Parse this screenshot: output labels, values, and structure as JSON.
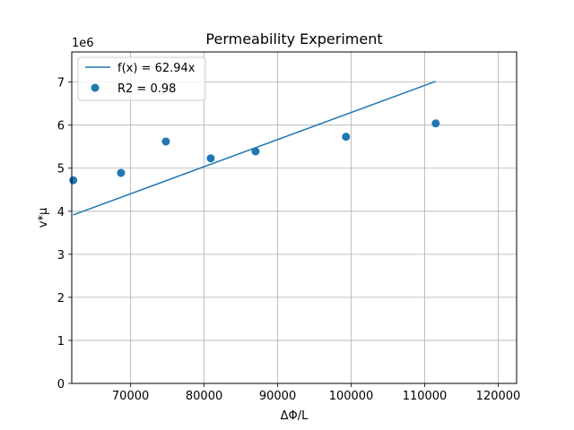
{
  "chart_data": {
    "type": "scatter",
    "title": "Permeability Experiment",
    "xlabel": "ΔΦ/L",
    "ylabel": "v*μ",
    "y_offset_label": "1e6",
    "xlim": [
      62000,
      122500
    ],
    "ylim": [
      0,
      7700000
    ],
    "xticks": [
      70000,
      80000,
      90000,
      100000,
      110000,
      120000
    ],
    "yticks": [
      0,
      1000000,
      2000000,
      3000000,
      4000000,
      5000000,
      6000000,
      7000000
    ],
    "xtick_labels": [
      "70000",
      "80000",
      "90000",
      "100000",
      "110000",
      "120000"
    ],
    "ytick_labels": [
      "0",
      "1",
      "2",
      "3",
      "4",
      "5",
      "6",
      "7"
    ],
    "grid": true,
    "legend_placement": "top-left",
    "colors": {
      "series": "#1f77b4",
      "grid": "#b0b0b0",
      "axes": "#000000"
    },
    "series": [
      {
        "name": "f(x) = 62.94x",
        "kind": "line",
        "x": [
          62200,
          111500
        ],
        "y": [
          3915000,
          7018000
        ]
      },
      {
        "name": "R2 = 0.98",
        "kind": "scatter",
        "x": [
          62200,
          68700,
          74800,
          80900,
          87000,
          99300,
          111500
        ],
        "y": [
          4720000,
          4890000,
          5620000,
          5230000,
          5390000,
          5730000,
          6040000
        ]
      }
    ]
  }
}
